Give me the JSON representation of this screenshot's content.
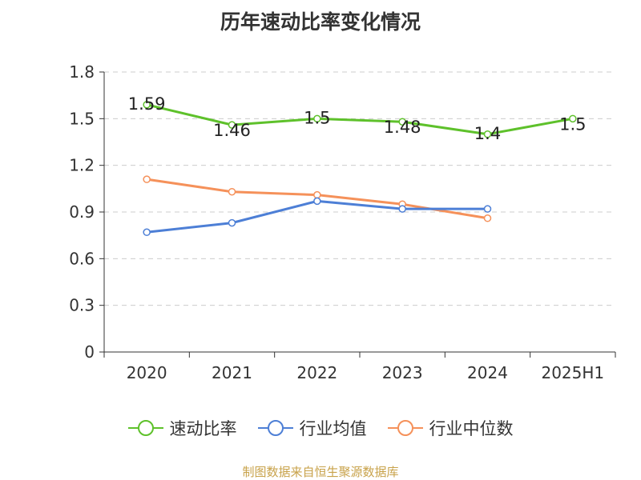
{
  "chart_data": {
    "type": "line",
    "title": "历年速动比率变化情况",
    "categories": [
      "2020",
      "2021",
      "2022",
      "2023",
      "2024",
      "2025H1"
    ],
    "yticks": [
      "0",
      "0.3",
      "0.6",
      "0.9",
      "1.2",
      "1.5",
      "1.8"
    ],
    "ylim": [
      0,
      1.8
    ],
    "grid": true,
    "legend_position": "bottom",
    "series": [
      {
        "name": "速动比率",
        "color": "#5ec12b",
        "values": [
          1.59,
          1.46,
          1.5,
          1.48,
          1.4,
          1.5
        ],
        "labels": [
          "1.59",
          "1.46",
          "1.5",
          "1.48",
          "1.4",
          "1.5"
        ]
      },
      {
        "name": "行业均值",
        "color": "#4d7fd6",
        "values": [
          0.77,
          0.83,
          0.97,
          0.92,
          0.92,
          null
        ]
      },
      {
        "name": "行业中位数",
        "color": "#f5915a",
        "values": [
          1.11,
          1.03,
          1.01,
          0.95,
          0.86,
          null
        ]
      }
    ]
  },
  "source_note": "制图数据来自恒生聚源数据库"
}
